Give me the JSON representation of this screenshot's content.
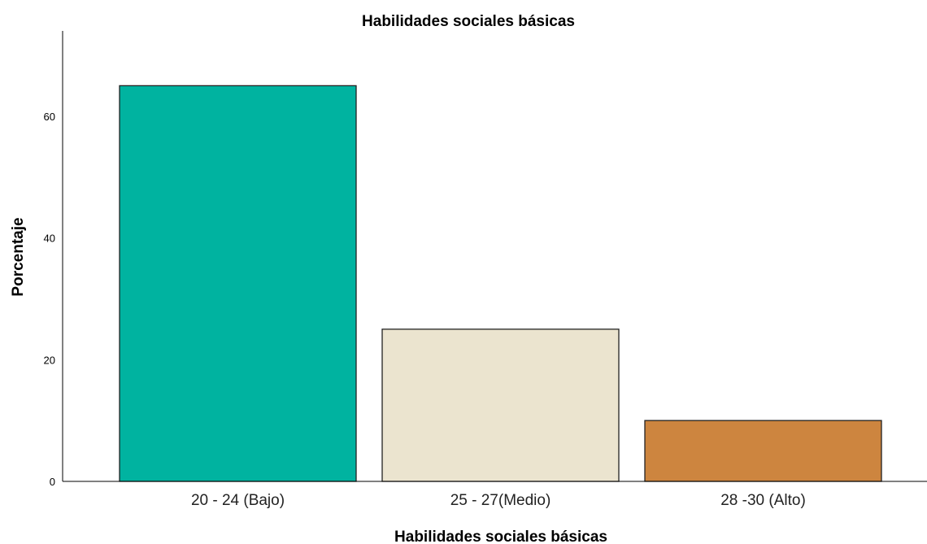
{
  "chart_data": {
    "type": "bar",
    "title": "Habilidades sociales básicas",
    "xlabel": "Habilidades sociales básicas",
    "ylabel": "Porcentaje",
    "categories": [
      "20 - 24 (Bajo)",
      "25 - 27(Medio)",
      "28 -30 (Alto)"
    ],
    "values": [
      65,
      25,
      10
    ],
    "colors": [
      "#00b3a0",
      "#ebe4cf",
      "#cd853f"
    ],
    "ylim": [
      0,
      74
    ],
    "yticks": [
      0,
      20,
      40,
      60
    ],
    "ytick_labels": [
      "0",
      "20",
      "40",
      "60"
    ],
    "grid": false,
    "legend": "none"
  }
}
